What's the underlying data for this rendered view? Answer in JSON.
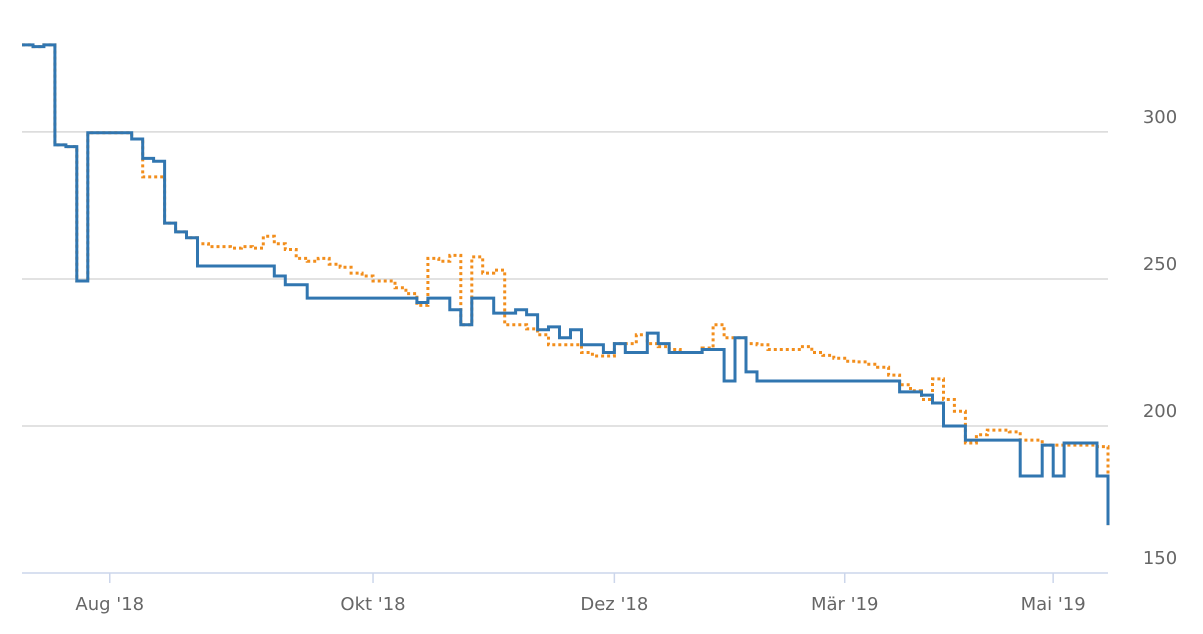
{
  "chart_data": {
    "type": "step-line",
    "categories": [
      null,
      null,
      null,
      null,
      null,
      null,
      null,
      null,
      "Aug '18",
      null,
      null,
      null,
      null,
      null,
      null,
      null,
      null,
      null,
      null,
      null,
      null,
      null,
      null,
      null,
      null,
      null,
      null,
      null,
      null,
      null,
      null,
      null,
      "Okt '18",
      null,
      null,
      null,
      null,
      null,
      null,
      null,
      null,
      null,
      null,
      null,
      null,
      null,
      null,
      null,
      null,
      null,
      null,
      null,
      null,
      null,
      "Dez '18",
      null,
      null,
      null,
      null,
      null,
      null,
      null,
      null,
      null,
      null,
      null,
      null,
      null,
      null,
      null,
      null,
      null,
      null,
      null,
      null,
      "Mär '19",
      null,
      null,
      null,
      null,
      null,
      null,
      null,
      null,
      null,
      null,
      null,
      null,
      null,
      null,
      null,
      null,
      null,
      null,
      "Mai '19",
      null,
      null,
      null,
      null,
      null
    ],
    "series": [
      {
        "color": "#3176b0",
        "dash": "solid",
        "values": [
          329.6,
          329,
          329.6,
          295.6,
          295,
          249.3,
          299.7,
          299.7,
          299.7,
          299.7,
          297.6,
          291,
          290,
          269,
          266,
          264,
          254.4,
          254.4,
          254.4,
          254.4,
          254.4,
          254.4,
          254.4,
          251,
          248,
          248,
          243.5,
          243.5,
          243.5,
          243.5,
          243.5,
          243.5,
          243.5,
          243.5,
          243.5,
          243.5,
          242,
          243.5,
          243.5,
          239.5,
          234.4,
          243.5,
          243.5,
          238.4,
          238.4,
          239.5,
          237.8,
          232.7,
          233.7,
          230,
          232.7,
          227.6,
          227.6,
          225,
          228,
          225,
          225,
          231.6,
          228,
          225,
          225,
          225,
          226,
          226,
          215.3,
          230,
          218.4,
          215.3,
          215.3,
          215.3,
          215.3,
          215.3,
          215.3,
          215.3,
          215.3,
          215.3,
          215.3,
          215.3,
          215.3,
          215.3,
          211.6,
          211.6,
          210.5,
          207.8,
          200,
          200,
          195.2,
          195.2,
          195.2,
          195.2,
          195.2,
          183,
          183,
          193.5,
          183,
          194.2,
          194.2,
          194.2,
          183,
          166.3
        ]
      },
      {
        "color": "#f28e1c",
        "dash": "dotted",
        "values": [
          329.6,
          329,
          329.6,
          295.6,
          295,
          249.3,
          299.7,
          299.7,
          299.7,
          299.7,
          297.6,
          284.7,
          284.7,
          269,
          266,
          264,
          262,
          261,
          261,
          260.5,
          261,
          260.5,
          264.5,
          262,
          260,
          257,
          256,
          257,
          255,
          254,
          252,
          251,
          249.3,
          249.3,
          247,
          245,
          241,
          257,
          256,
          258,
          234.4,
          257.5,
          252,
          253,
          234.4,
          234.4,
          233,
          231,
          227.6,
          227.6,
          227.6,
          225,
          223.8,
          223.8,
          228,
          228,
          231,
          228,
          227,
          226,
          225,
          225,
          226.5,
          234.4,
          230,
          230,
          228,
          227.6,
          226,
          226,
          226,
          227,
          225,
          224,
          223,
          222,
          221.8,
          221,
          220,
          217.3,
          214,
          212,
          209,
          216,
          209,
          205,
          194.2,
          197,
          198.6,
          198.6,
          198,
          195.2,
          195.2,
          193.5,
          193.5,
          193.5,
          193.5,
          193.5,
          193,
          166.3
        ]
      }
    ],
    "ylim": [
      150,
      335
    ],
    "yticks": [
      150,
      200,
      250,
      300
    ],
    "grid": true,
    "y_axis_side": "right"
  }
}
